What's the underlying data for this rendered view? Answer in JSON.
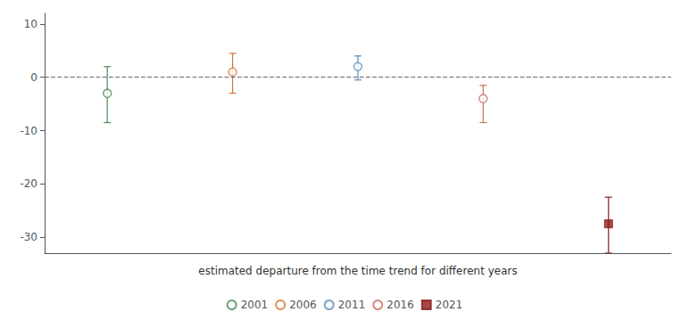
{
  "chart_data": {
    "type": "errorbar",
    "xlabel": "estimated departure from the time trend for different years",
    "series": [
      {
        "name": "2001",
        "color": "#4d8c57",
        "marker": "circle_open",
        "values": [
          -3.0
        ],
        "ci_lower": [
          -8.5
        ],
        "ci_upper": [
          2.0
        ]
      },
      {
        "name": "2006",
        "color": "#d4783a",
        "marker": "circle_open",
        "values": [
          1.0
        ],
        "ci_lower": [
          -3.0
        ],
        "ci_upper": [
          4.5
        ]
      },
      {
        "name": "2011",
        "color": "#5b8db8",
        "marker": "circle_open",
        "values": [
          2.0
        ],
        "ci_lower": [
          -0.5
        ],
        "ci_upper": [
          4.0
        ]
      },
      {
        "name": "2016",
        "color": "#c97060",
        "marker": "circle_open",
        "values": [
          -4.0
        ],
        "ci_lower": [
          -8.5
        ],
        "ci_upper": [
          -1.5
        ]
      },
      {
        "name": "2021",
        "color": "#8b1a1a",
        "marker": "square",
        "values": [
          -27.5
        ],
        "ci_lower": [
          -33.0
        ],
        "ci_upper": [
          -22.5
        ]
      }
    ],
    "ylim": [
      -33,
      12
    ],
    "yticks": [
      -30,
      -20,
      -10,
      0,
      10
    ],
    "grid": false,
    "legend": "bottom",
    "tick_labels": "y",
    "reference_line": {
      "y": 0,
      "color": "#666666",
      "line_style": "dashed"
    }
  }
}
